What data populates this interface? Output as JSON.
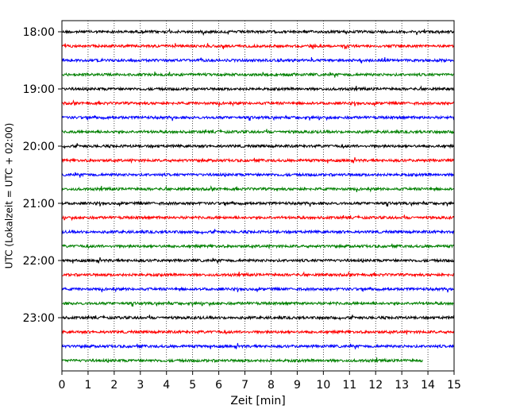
{
  "chart_data": {
    "type": "line",
    "title": "",
    "xlabel": "Zeit  [min]",
    "ylabel": "UTC (Lokalzeit = UTC + 02:00)",
    "xlim": [
      0,
      15
    ],
    "xticks": [
      "0",
      "1",
      "2",
      "3",
      "4",
      "5",
      "6",
      "7",
      "8",
      "9",
      "10",
      "11",
      "12",
      "13",
      "14",
      "15"
    ],
    "yticks": [
      "18:00",
      "19:00",
      "20:00",
      "21:00",
      "22:00",
      "23:00"
    ],
    "grid": "vertical dotted",
    "colors": [
      "#000000",
      "#ff0000",
      "#0000ff",
      "#008000"
    ],
    "traces": [
      {
        "start": "18:00",
        "end_min": 15
      },
      {
        "start": "18:15",
        "end_min": 15
      },
      {
        "start": "18:30",
        "end_min": 15
      },
      {
        "start": "18:45",
        "end_min": 15
      },
      {
        "start": "19:00",
        "end_min": 15
      },
      {
        "start": "19:15",
        "end_min": 15
      },
      {
        "start": "19:30",
        "end_min": 15
      },
      {
        "start": "19:45",
        "end_min": 15
      },
      {
        "start": "20:00",
        "end_min": 15
      },
      {
        "start": "20:15",
        "end_min": 15
      },
      {
        "start": "20:30",
        "end_min": 15
      },
      {
        "start": "20:45",
        "end_min": 15
      },
      {
        "start": "21:00",
        "end_min": 15
      },
      {
        "start": "21:15",
        "end_min": 15
      },
      {
        "start": "21:30",
        "end_min": 15
      },
      {
        "start": "21:45",
        "end_min": 15
      },
      {
        "start": "22:00",
        "end_min": 15
      },
      {
        "start": "22:15",
        "end_min": 15
      },
      {
        "start": "22:30",
        "end_min": 15
      },
      {
        "start": "22:45",
        "end_min": 15
      },
      {
        "start": "23:00",
        "end_min": 15
      },
      {
        "start": "23:15",
        "end_min": 15
      },
      {
        "start": "23:30",
        "end_min": 15
      },
      {
        "start": "23:45",
        "end_min": 13.8
      }
    ]
  }
}
